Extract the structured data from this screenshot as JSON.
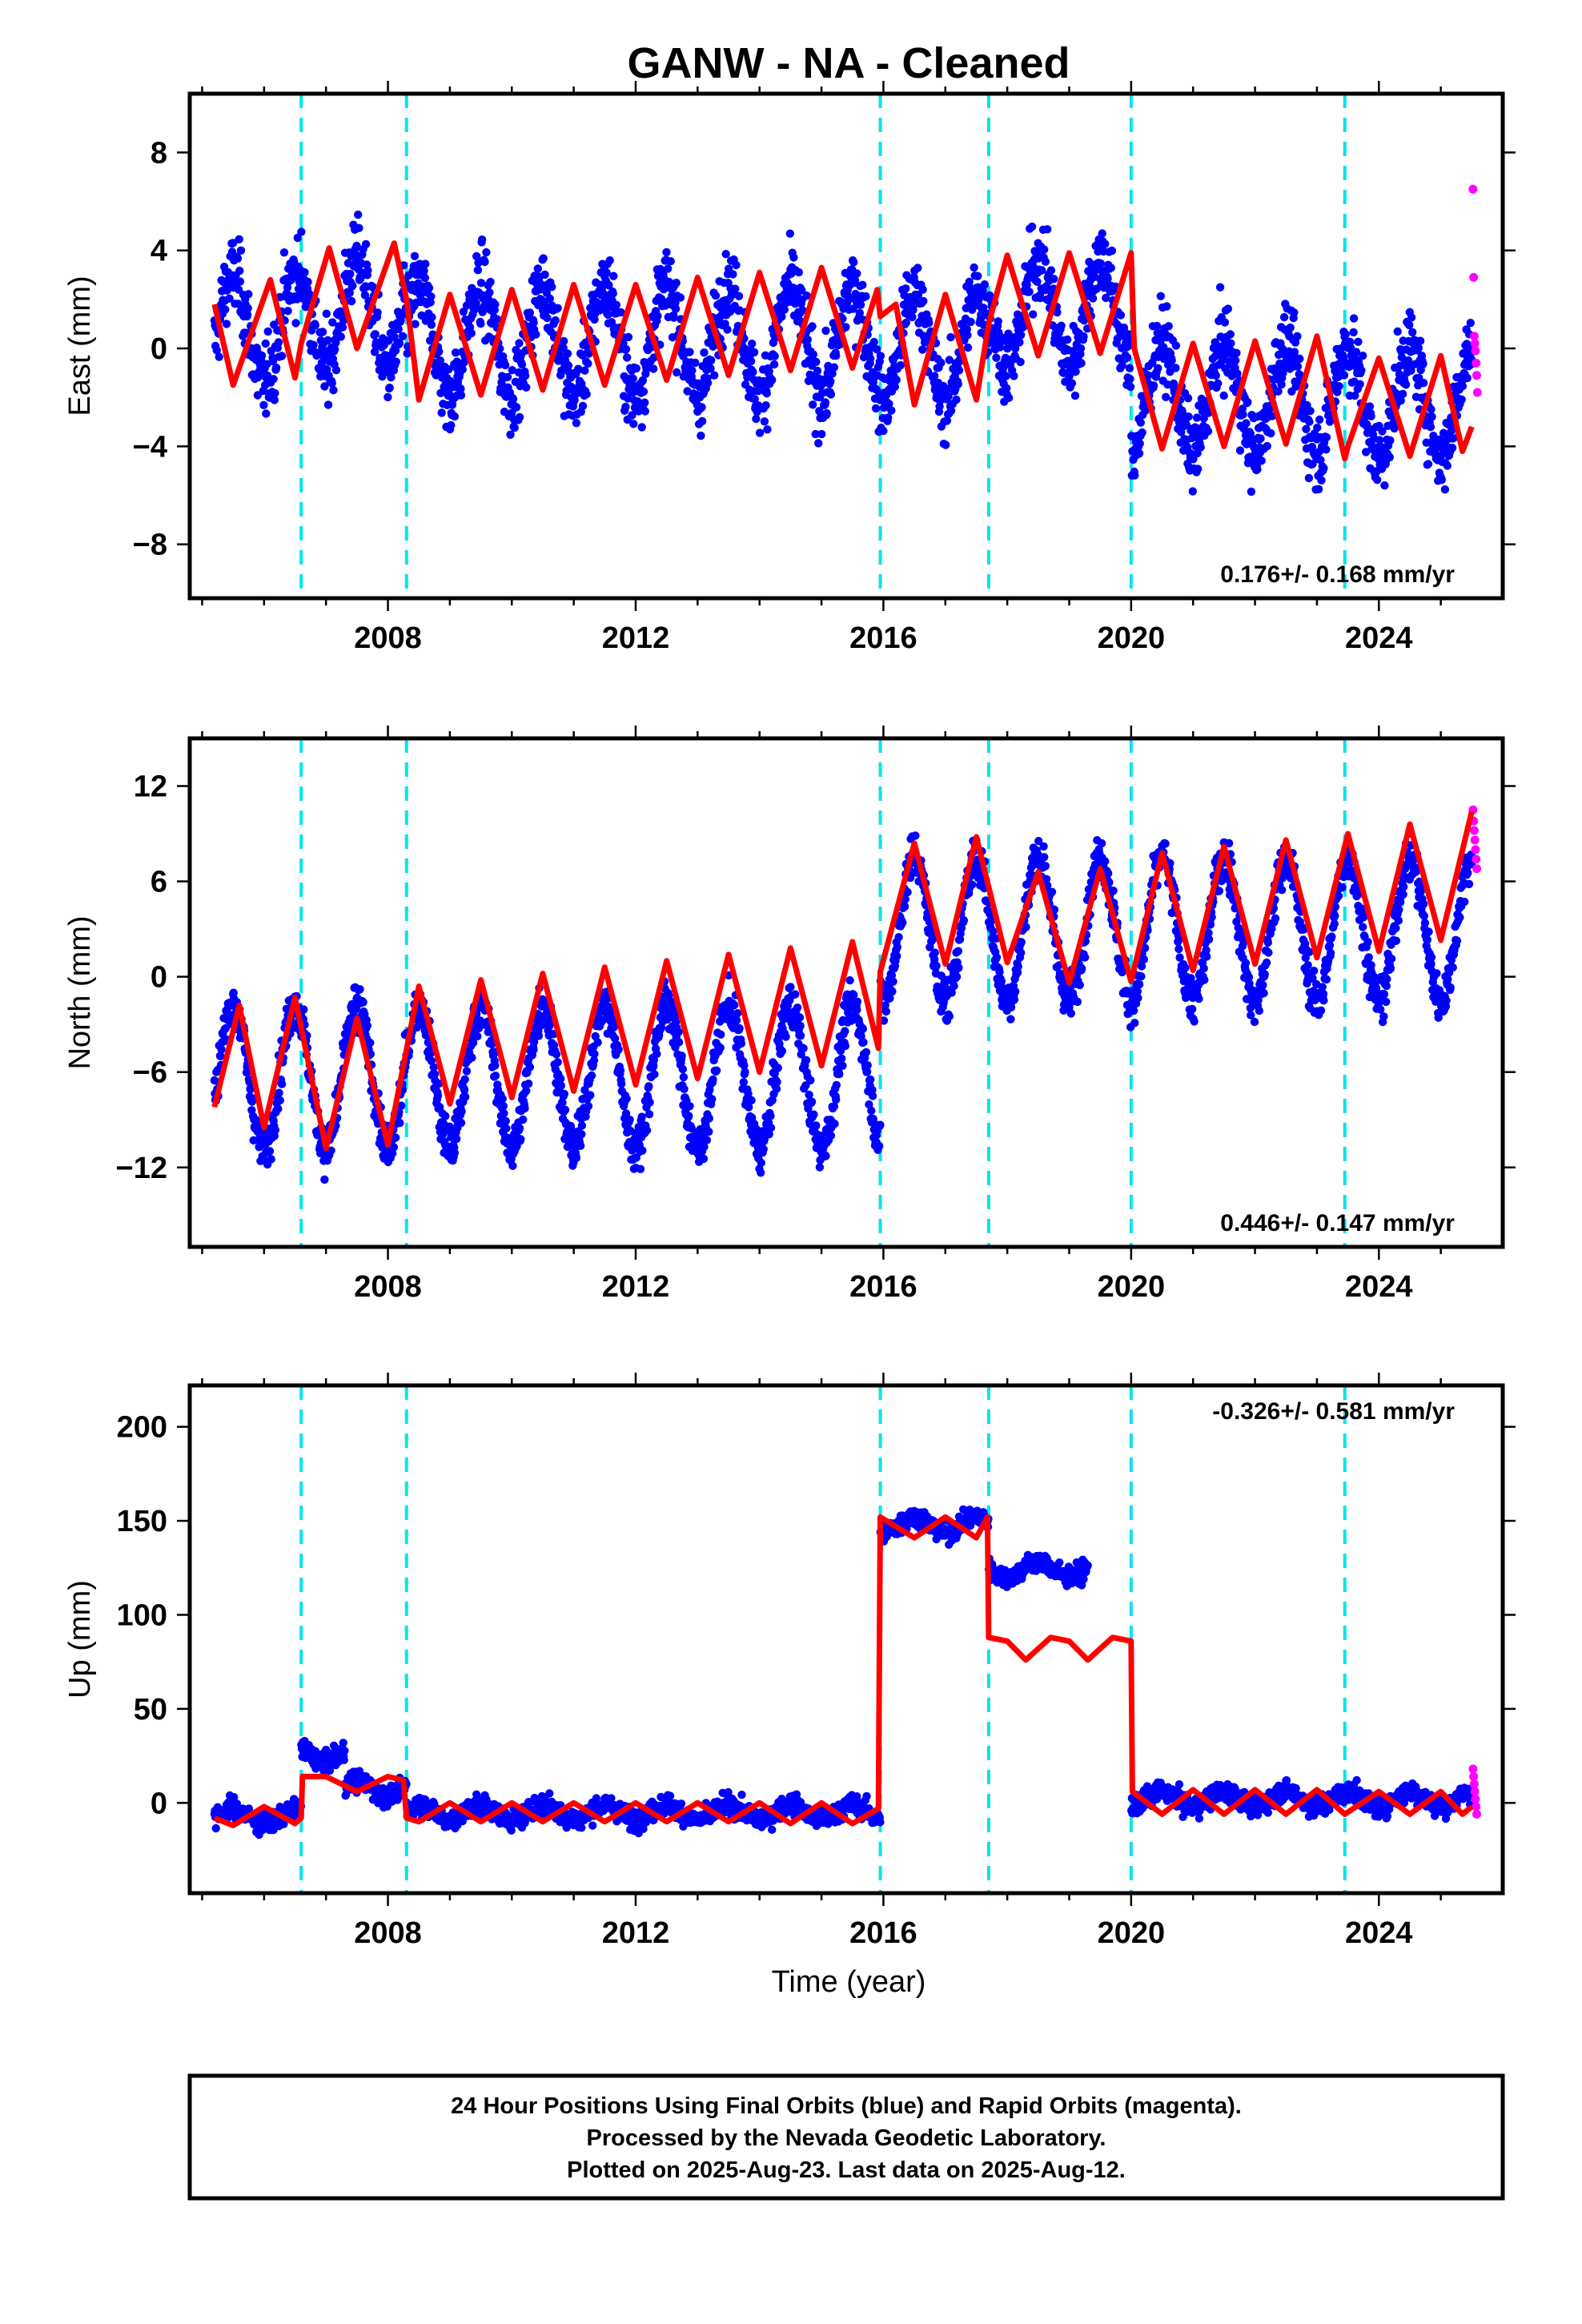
{
  "title": "GANW  - NA - Cleaned",
  "xlabel": "Time (year)",
  "caption": [
    "24 Hour Positions Using Final Orbits (blue) and Rapid Orbits (magenta).",
    "Processed by the Nevada Geodetic Laboratory.",
    "Plotted on 2025-Aug-23. Last data on 2025-Aug-12."
  ],
  "colors": {
    "final": "#0000ff",
    "rapid": "#ff00ff",
    "model": "#ff0000",
    "steps": "#00e5ee"
  },
  "chart_data": [
    {
      "type": "scatter",
      "ylabel": "East (mm)",
      "rate": "0.176+/- 0.168 mm/yr",
      "xlim": [
        2004.8,
        2026.0
      ],
      "ylim": [
        -10.2,
        10.4
      ],
      "xticks": [
        2008,
        2012,
        2016,
        2020,
        2024
      ],
      "yticks": [
        8,
        4,
        0,
        -4,
        -8
      ],
      "grid": false,
      "step_epochs": [
        2006.6,
        2008.3,
        2015.95,
        2017.7,
        2020.0,
        2023.45
      ],
      "series": [
        {
          "name": "Final Orbits",
          "start": 2005.2,
          "end": 2025.5,
          "amplitude": 2.2,
          "noise": 1.3,
          "offsets": [
            {
              "x": 2005.2,
              "y": 0.8
            },
            {
              "x": 2006.6,
              "y": 1.5
            },
            {
              "x": 2008.3,
              "y": 0.3
            },
            {
              "x": 2015.95,
              "y": 0.0
            },
            {
              "x": 2017.7,
              "y": 1.5
            },
            {
              "x": 2020.0,
              "y": -2.0
            },
            {
              "x": 2023.45,
              "y": -2.2
            }
          ],
          "rate": 0.176
        },
        {
          "name": "Rapid Orbits",
          "x": [
            2025.52,
            2025.53,
            2025.54,
            2025.55,
            2025.56,
            2025.57,
            2025.58,
            2025.59
          ],
          "y": [
            6.5,
            2.9,
            0.5,
            0.2,
            -0.1,
            -0.6,
            -1.1,
            -1.8
          ]
        }
      ],
      "model": [
        [
          2005.2,
          1.8
        ],
        [
          2005.5,
          -1.5
        ],
        [
          2006.1,
          2.8
        ],
        [
          2006.5,
          -1.2
        ],
        [
          2006.6,
          0.2
        ],
        [
          2007.05,
          4.1
        ],
        [
          2007.5,
          0.0
        ],
        [
          2008.1,
          4.3
        ],
        [
          2008.3,
          2.0
        ],
        [
          2008.5,
          -2.1
        ],
        [
          2009.0,
          2.2
        ],
        [
          2009.5,
          -1.9
        ],
        [
          2010.0,
          2.4
        ],
        [
          2010.5,
          -1.7
        ],
        [
          2011.0,
          2.6
        ],
        [
          2011.5,
          -1.5
        ],
        [
          2012.0,
          2.6
        ],
        [
          2012.5,
          -1.3
        ],
        [
          2013.0,
          2.9
        ],
        [
          2013.5,
          -1.1
        ],
        [
          2014.0,
          3.1
        ],
        [
          2014.5,
          -0.9
        ],
        [
          2015.0,
          3.3
        ],
        [
          2015.5,
          -0.8
        ],
        [
          2015.9,
          2.4
        ],
        [
          2015.95,
          1.3
        ],
        [
          2016.2,
          1.8
        ],
        [
          2016.5,
          -2.3
        ],
        [
          2017.0,
          2.2
        ],
        [
          2017.5,
          -2.1
        ],
        [
          2017.7,
          1.0
        ],
        [
          2018.0,
          3.8
        ],
        [
          2018.5,
          -0.3
        ],
        [
          2019.0,
          3.9
        ],
        [
          2019.5,
          -0.2
        ],
        [
          2020.0,
          3.9
        ],
        [
          2020.05,
          0.0
        ],
        [
          2020.5,
          -4.1
        ],
        [
          2021.0,
          0.2
        ],
        [
          2021.5,
          -4.0
        ],
        [
          2022.0,
          0.3
        ],
        [
          2022.5,
          -3.9
        ],
        [
          2023.0,
          0.5
        ],
        [
          2023.45,
          -4.5
        ],
        [
          2023.5,
          -4.0
        ],
        [
          2024.0,
          -0.4
        ],
        [
          2024.5,
          -4.4
        ],
        [
          2025.0,
          -0.3
        ],
        [
          2025.35,
          -4.2
        ],
        [
          2025.5,
          -3.2
        ]
      ]
    },
    {
      "type": "scatter",
      "ylabel": "North (mm)",
      "rate": "0.446+/- 0.147 mm/yr",
      "xlim": [
        2004.8,
        2026.0
      ],
      "ylim": [
        -17.0,
        15.0
      ],
      "xticks": [
        2008,
        2012,
        2016,
        2020,
        2024
      ],
      "yticks": [
        12,
        6,
        0,
        -6,
        -12
      ],
      "grid": false,
      "step_epochs": [
        2006.6,
        2008.3,
        2015.95,
        2017.7,
        2020.0,
        2023.45
      ],
      "series": [
        {
          "name": "Final Orbits",
          "start": 2005.2,
          "end": 2025.5,
          "amplitude": 4.5,
          "noise": 1.2,
          "offsets": [
            {
              "x": 2005.2,
              "y": -6.3
            },
            {
              "x": 2015.95,
              "y": 3.0
            }
          ],
          "rate": 0.446
        },
        {
          "name": "Rapid Orbits",
          "x": [
            2025.52,
            2025.53,
            2025.54,
            2025.55,
            2025.56,
            2025.57,
            2025.58
          ],
          "y": [
            10.5,
            9.8,
            9.2,
            8.6,
            8.0,
            7.4,
            6.8
          ]
        }
      ],
      "model": [
        [
          2005.2,
          -8.2
        ],
        [
          2005.6,
          -1.8
        ],
        [
          2006.0,
          -9.5
        ],
        [
          2006.5,
          -1.3
        ],
        [
          2007.0,
          -10.8
        ],
        [
          2007.5,
          -2.6
        ],
        [
          2008.0,
          -10.6
        ],
        [
          2008.5,
          -0.6
        ],
        [
          2009.0,
          -8.0
        ],
        [
          2009.5,
          -0.2
        ],
        [
          2010.0,
          -7.6
        ],
        [
          2010.5,
          0.2
        ],
        [
          2011.0,
          -7.2
        ],
        [
          2011.5,
          0.6
        ],
        [
          2012.0,
          -6.8
        ],
        [
          2012.5,
          1.0
        ],
        [
          2013.0,
          -6.4
        ],
        [
          2013.5,
          1.4
        ],
        [
          2014.0,
          -6.0
        ],
        [
          2014.5,
          1.8
        ],
        [
          2015.0,
          -5.6
        ],
        [
          2015.5,
          2.2
        ],
        [
          2015.92,
          -4.5
        ],
        [
          2015.95,
          0.3
        ],
        [
          2016.5,
          8.4
        ],
        [
          2017.0,
          0.8
        ],
        [
          2017.5,
          8.8
        ],
        [
          2018.0,
          0.9
        ],
        [
          2018.5,
          6.6
        ],
        [
          2019.0,
          -0.4
        ],
        [
          2019.5,
          6.8
        ],
        [
          2020.0,
          -0.3
        ],
        [
          2020.5,
          7.8
        ],
        [
          2021.0,
          0.4
        ],
        [
          2021.5,
          8.2
        ],
        [
          2022.0,
          0.8
        ],
        [
          2022.5,
          8.6
        ],
        [
          2023.0,
          1.2
        ],
        [
          2023.5,
          9.0
        ],
        [
          2024.0,
          1.6
        ],
        [
          2024.5,
          9.6
        ],
        [
          2025.0,
          2.3
        ],
        [
          2025.5,
          10.4
        ]
      ]
    },
    {
      "type": "scatter",
      "ylabel": "Up (mm)",
      "rate": "-0.326+/- 0.581 mm/yr",
      "xlim": [
        2004.8,
        2026.0
      ],
      "ylim": [
        -48.0,
        222.0
      ],
      "xticks": [
        2008,
        2012,
        2016,
        2020,
        2024
      ],
      "yticks": [
        200,
        150,
        100,
        50,
        0
      ],
      "grid": false,
      "step_epochs": [
        2006.6,
        2008.3,
        2015.95,
        2017.7,
        2020.0,
        2023.45
      ],
      "series": [
        {
          "name": "Final Orbits",
          "start": 2005.2,
          "end": 2025.5,
          "amplitude": 4.0,
          "noise": 4.5,
          "offsets": [
            {
              "x": 2005.2,
              "y": -7
            },
            {
              "x": 2006.6,
              "y": 26
            },
            {
              "x": 2007.3,
              "y": 8
            },
            {
              "x": 2008.3,
              "y": -5
            },
            {
              "x": 2015.95,
              "y": 148
            },
            {
              "x": 2017.7,
              "y": 124
            },
            {
              "x": 2019.3,
              "y": null
            },
            {
              "x": 2020.0,
              "y": 2
            }
          ],
          "rate": -0.326
        },
        {
          "name": "Rapid Orbits",
          "x": [
            2025.52,
            2025.53,
            2025.54,
            2025.55,
            2025.56,
            2025.57,
            2025.58
          ],
          "y": [
            18,
            14,
            10,
            6,
            2,
            -2,
            -6
          ]
        }
      ],
      "model": [
        [
          2005.2,
          -8
        ],
        [
          2005.5,
          -12
        ],
        [
          2006.0,
          -2
        ],
        [
          2006.5,
          -11
        ],
        [
          2006.6,
          -8
        ],
        [
          2006.62,
          14
        ],
        [
          2007.0,
          14
        ],
        [
          2007.5,
          6
        ],
        [
          2008.0,
          14
        ],
        [
          2008.25,
          12
        ],
        [
          2008.3,
          -8
        ],
        [
          2008.5,
          -10
        ],
        [
          2009.0,
          0
        ],
        [
          2009.5,
          -10
        ],
        [
          2010.0,
          0
        ],
        [
          2010.5,
          -10
        ],
        [
          2011.0,
          0
        ],
        [
          2011.5,
          -10
        ],
        [
          2012.0,
          0
        ],
        [
          2012.5,
          -10
        ],
        [
          2013.0,
          0
        ],
        [
          2013.5,
          -10
        ],
        [
          2014.0,
          0
        ],
        [
          2014.5,
          -11
        ],
        [
          2015.0,
          0
        ],
        [
          2015.5,
          -11
        ],
        [
          2015.92,
          -3
        ],
        [
          2015.95,
          152
        ],
        [
          2016.5,
          141
        ],
        [
          2017.0,
          152
        ],
        [
          2017.5,
          141
        ],
        [
          2017.68,
          152
        ],
        [
          2017.7,
          88
        ],
        [
          2018.0,
          86
        ],
        [
          2018.3,
          76
        ],
        [
          2018.7,
          88
        ],
        [
          2019.0,
          86
        ],
        [
          2019.3,
          76
        ],
        [
          2019.7,
          88
        ],
        [
          2020.0,
          86
        ],
        [
          2020.02,
          6
        ],
        [
          2020.5,
          -6
        ],
        [
          2021.0,
          7
        ],
        [
          2021.5,
          -6
        ],
        [
          2022.0,
          7
        ],
        [
          2022.5,
          -6
        ],
        [
          2023.0,
          7
        ],
        [
          2023.45,
          -6
        ],
        [
          2024.0,
          6
        ],
        [
          2024.5,
          -6
        ],
        [
          2025.0,
          6
        ],
        [
          2025.35,
          -6
        ],
        [
          2025.5,
          -2
        ]
      ]
    }
  ]
}
